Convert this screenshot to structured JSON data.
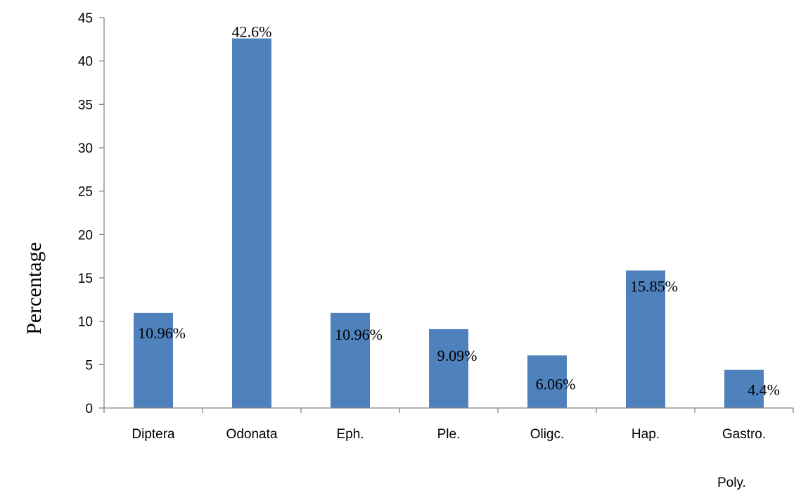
{
  "chart_data": {
    "type": "bar",
    "categories": [
      "Diptera",
      "Odonata",
      "Eph.",
      "Ple.",
      "Oligc.",
      "Hap.",
      "Gastro."
    ],
    "values": [
      10.96,
      42.6,
      10.96,
      9.09,
      6.06,
      15.85,
      4.4
    ],
    "data_labels": [
      "10.96%",
      "42.6%",
      "10.96%",
      "9.09%",
      "6.06%",
      "15.85%",
      "4.4%"
    ],
    "title": "",
    "xlabel": "",
    "ylabel": "Percentage",
    "ylim": [
      0,
      45
    ],
    "yticks": [
      0,
      5,
      10,
      15,
      20,
      25,
      30,
      35,
      40,
      45
    ],
    "annotation": "Poly.",
    "grid": false,
    "legend": "none",
    "bar_color": "#4f81bd",
    "axis_color": "#868686"
  }
}
